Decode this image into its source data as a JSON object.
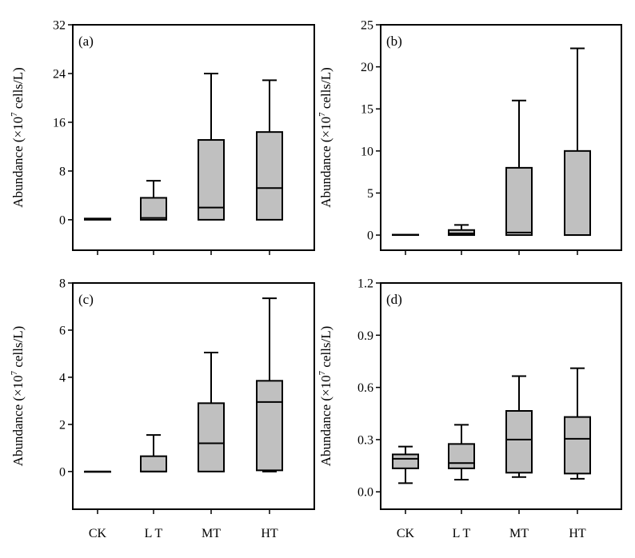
{
  "chart_data": [
    {
      "type": "box",
      "panel_label": "(a)",
      "ylabel": {
        "prefix": "Abundance (×10",
        "exponent": "7",
        "suffix": " cells/L)"
      },
      "ylim": [
        -5,
        32
      ],
      "yticks": [
        0,
        8,
        16,
        24,
        32
      ],
      "ytick_labels": [
        "0",
        "8",
        "16",
        "24",
        "32"
      ],
      "categories": [
        "CK",
        "LT",
        "MT",
        "HT"
      ],
      "boxes": [
        {
          "min": 0,
          "q1": 0,
          "median": 0.1,
          "q3": 0.2,
          "max": 0.2
        },
        {
          "min": 0,
          "q1": 0,
          "median": 0.3,
          "q3": 3.6,
          "max": 6.4
        },
        {
          "min": 0,
          "q1": 0,
          "median": 2.0,
          "q3": 13.1,
          "max": 24.0
        },
        {
          "min": 0,
          "q1": 0,
          "median": 5.2,
          "q3": 14.4,
          "max": 22.9
        }
      ]
    },
    {
      "type": "box",
      "panel_label": "(b)",
      "ylabel": {
        "prefix": "Abundance (×10",
        "exponent": "7",
        "suffix": " cells/L)"
      },
      "ylim": [
        -1.8,
        25
      ],
      "yticks": [
        0,
        5,
        10,
        15,
        20,
        25
      ],
      "ytick_labels": [
        "0",
        "5",
        "10",
        "15",
        "20",
        "25"
      ],
      "categories": [
        "CK",
        "LT",
        "MT",
        "HT"
      ],
      "boxes": [
        {
          "min": 0,
          "q1": 0,
          "median": 0,
          "q3": 0.05,
          "max": 0.05
        },
        {
          "min": 0,
          "q1": 0,
          "median": 0.2,
          "q3": 0.6,
          "max": 1.2
        },
        {
          "min": 0,
          "q1": 0,
          "median": 0.3,
          "q3": 8.0,
          "max": 16.0
        },
        {
          "min": 0,
          "q1": 0,
          "median": 0,
          "q3": 10.0,
          "max": 22.2
        }
      ]
    },
    {
      "type": "box",
      "panel_label": "(c)",
      "ylabel": {
        "prefix": "Abundance (×10",
        "exponent": "7",
        "suffix": " cells/L)"
      },
      "ylim": [
        -1.6,
        8
      ],
      "yticks": [
        0,
        2,
        4,
        6,
        8
      ],
      "ytick_labels": [
        "0",
        "2",
        "4",
        "6",
        "8"
      ],
      "categories": [
        "CK",
        "LT",
        "MT",
        "HT"
      ],
      "boxes": [
        {
          "min": 0,
          "q1": 0,
          "median": 0,
          "q3": 0,
          "max": 0
        },
        {
          "min": 0,
          "q1": 0,
          "median": 0,
          "q3": 0.65,
          "max": 1.55
        },
        {
          "min": 0,
          "q1": 0,
          "median": 1.2,
          "q3": 2.9,
          "max": 5.05
        },
        {
          "min": 0,
          "q1": 0.05,
          "median": 2.95,
          "q3": 3.85,
          "max": 7.35
        }
      ]
    },
    {
      "type": "box",
      "panel_label": "(d)",
      "ylabel": {
        "prefix": "Abundance (×10",
        "exponent": "7",
        "suffix": " cells/L)"
      },
      "ylim": [
        -0.1,
        1.2
      ],
      "yticks": [
        0.0,
        0.3,
        0.6,
        0.9,
        1.2
      ],
      "ytick_labels": [
        "0.0",
        "0.3",
        "0.6",
        "0.9",
        "1.2"
      ],
      "categories": [
        "CK",
        "LT",
        "MT",
        "HT"
      ],
      "boxes": [
        {
          "min": 0.05,
          "q1": 0.135,
          "median": 0.19,
          "q3": 0.215,
          "max": 0.26
        },
        {
          "min": 0.07,
          "q1": 0.135,
          "median": 0.165,
          "q3": 0.275,
          "max": 0.385
        },
        {
          "min": 0.085,
          "q1": 0.11,
          "median": 0.3,
          "q3": 0.465,
          "max": 0.665
        },
        {
          "min": 0.075,
          "q1": 0.105,
          "median": 0.305,
          "q3": 0.43,
          "max": 0.71
        }
      ]
    }
  ],
  "xaxis_labels": [
    "CK",
    "L T",
    "MT",
    "HT"
  ],
  "colors": {
    "box_fill": "#c0c0c0",
    "stroke": "#000000"
  }
}
